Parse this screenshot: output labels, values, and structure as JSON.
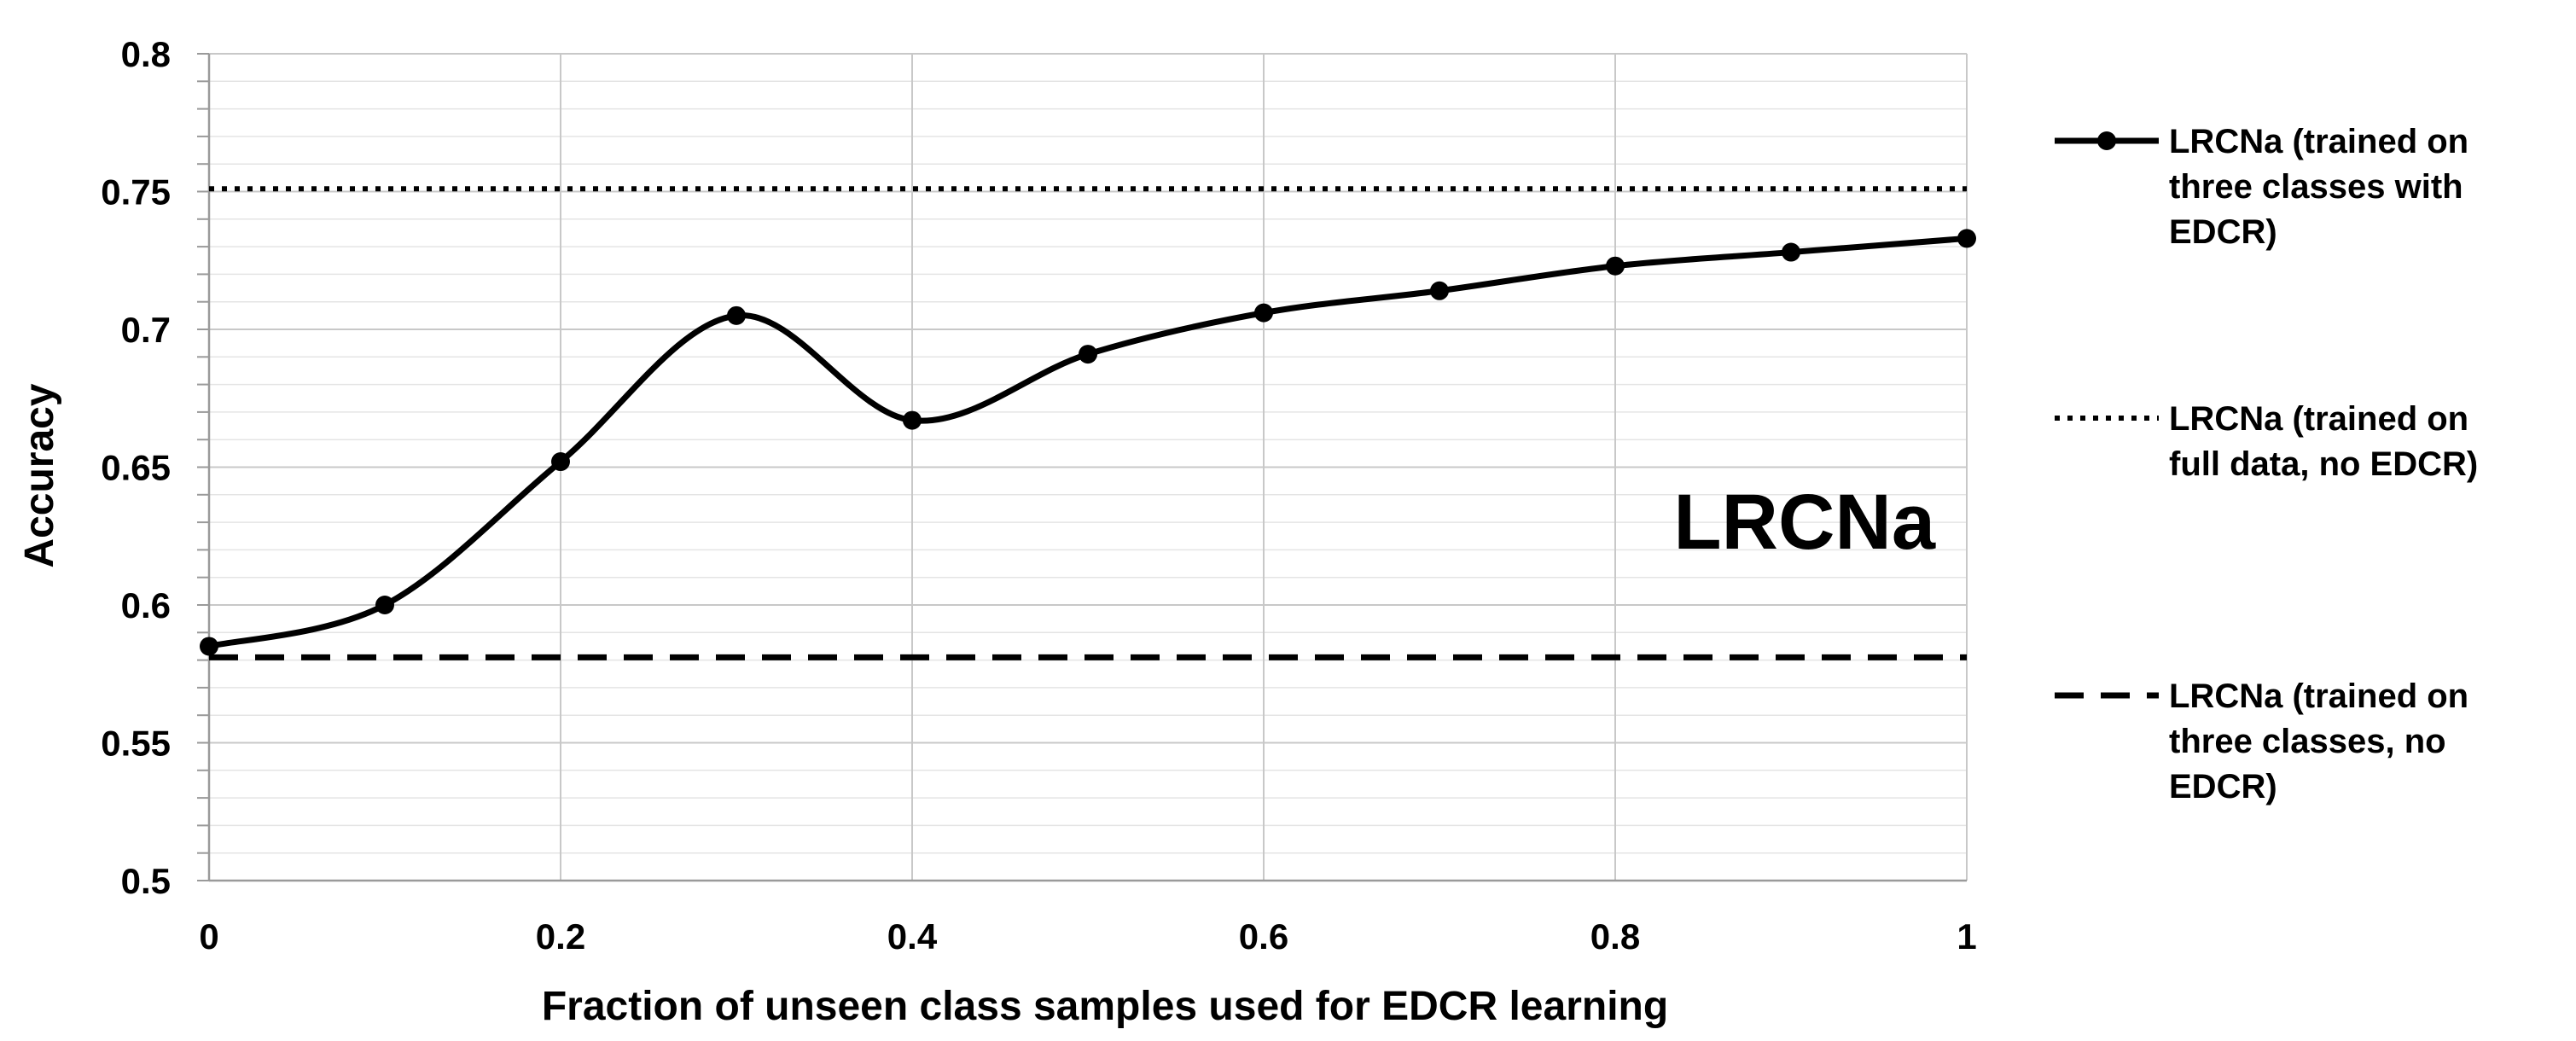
{
  "chart_data": {
    "type": "line",
    "title": "",
    "xlabel": "Fraction of unseen class samples used for EDCR learning",
    "ylabel": "Accuracy",
    "annotation": "LRCNa",
    "xlim": [
      0,
      1
    ],
    "ylim": [
      0.5,
      0.8
    ],
    "x_ticks": [
      "0",
      "0.2",
      "0.4",
      "0.6",
      "0.8",
      "1"
    ],
    "y_ticks": [
      "0.5",
      "0.55",
      "0.6",
      "0.65",
      "0.7",
      "0.75",
      "0.8"
    ],
    "grid": true,
    "legend_position": "right",
    "series": [
      {
        "name": "LRCNa (trained on three classes with EDCR)",
        "style": "solid-marker",
        "x": [
          0,
          0.1,
          0.2,
          0.3,
          0.4,
          0.5,
          0.6,
          0.7,
          0.8,
          0.9,
          1.0
        ],
        "y": [
          0.585,
          0.6,
          0.652,
          0.705,
          0.667,
          0.691,
          0.706,
          0.714,
          0.723,
          0.728,
          0.733
        ]
      },
      {
        "name": "LRCNa (trained on full data, no EDCR)",
        "style": "dotted",
        "x": [
          0,
          1
        ],
        "y": [
          0.751,
          0.751
        ]
      },
      {
        "name": "LRCNa (trained on three classes, no EDCR)",
        "style": "dashed",
        "x": [
          0,
          1
        ],
        "y": [
          0.581,
          0.581
        ]
      }
    ],
    "legend": [
      {
        "lines": [
          "LRCNa (trained on",
          "three classes with",
          "EDCR)"
        ]
      },
      {
        "lines": [
          "LRCNa (trained on",
          "full data, no EDCR)"
        ]
      },
      {
        "lines": [
          "LRCNa (trained on",
          "three classes, no",
          "EDCR)"
        ]
      }
    ]
  }
}
